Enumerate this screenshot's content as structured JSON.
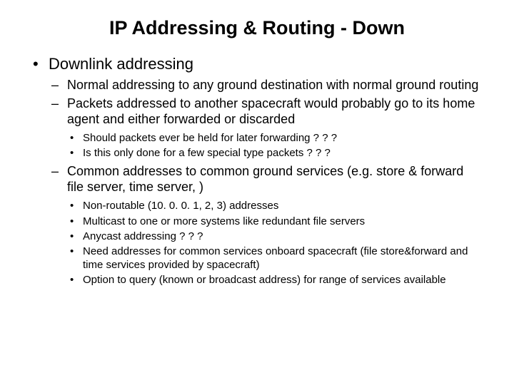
{
  "title": "IP Addressing & Routing - Down",
  "bullets": {
    "l1_0": "Downlink addressing",
    "l2_0": "Normal addressing to any ground destination with normal ground routing",
    "l2_1": "Packets addressed to another spacecraft would probably go to its home agent and either forwarded or discarded",
    "l3_0": "Should packets ever be held for later forwarding ? ? ?",
    "l3_1": "Is this only done for a few special type packets ? ? ?",
    "l2_2": "Common addresses to common ground services (e.g. store & forward file server, time server, )",
    "l3_2": "Non-routable (10. 0. 0. 1, 2, 3) addresses",
    "l3_3": "Multicast to one or more systems like redundant file servers",
    "l3_4": "Anycast addressing ? ? ?",
    "l3_5": "Need addresses for common services onboard spacecraft (file store&forward and time services provided by spacecraft)",
    "l3_6": "Option to query (known or broadcast address) for range of services available"
  },
  "style": {
    "background_color": "#ffffff",
    "text_color": "#000000",
    "font_family": "Arial",
    "title_fontsize": 27,
    "title_fontweight": "bold",
    "lvl1_fontsize": 22,
    "lvl2_fontsize": 18,
    "lvl3_fontsize": 15,
    "bullet_lvl1": "•",
    "bullet_lvl2": "–",
    "bullet_lvl3": "•"
  }
}
